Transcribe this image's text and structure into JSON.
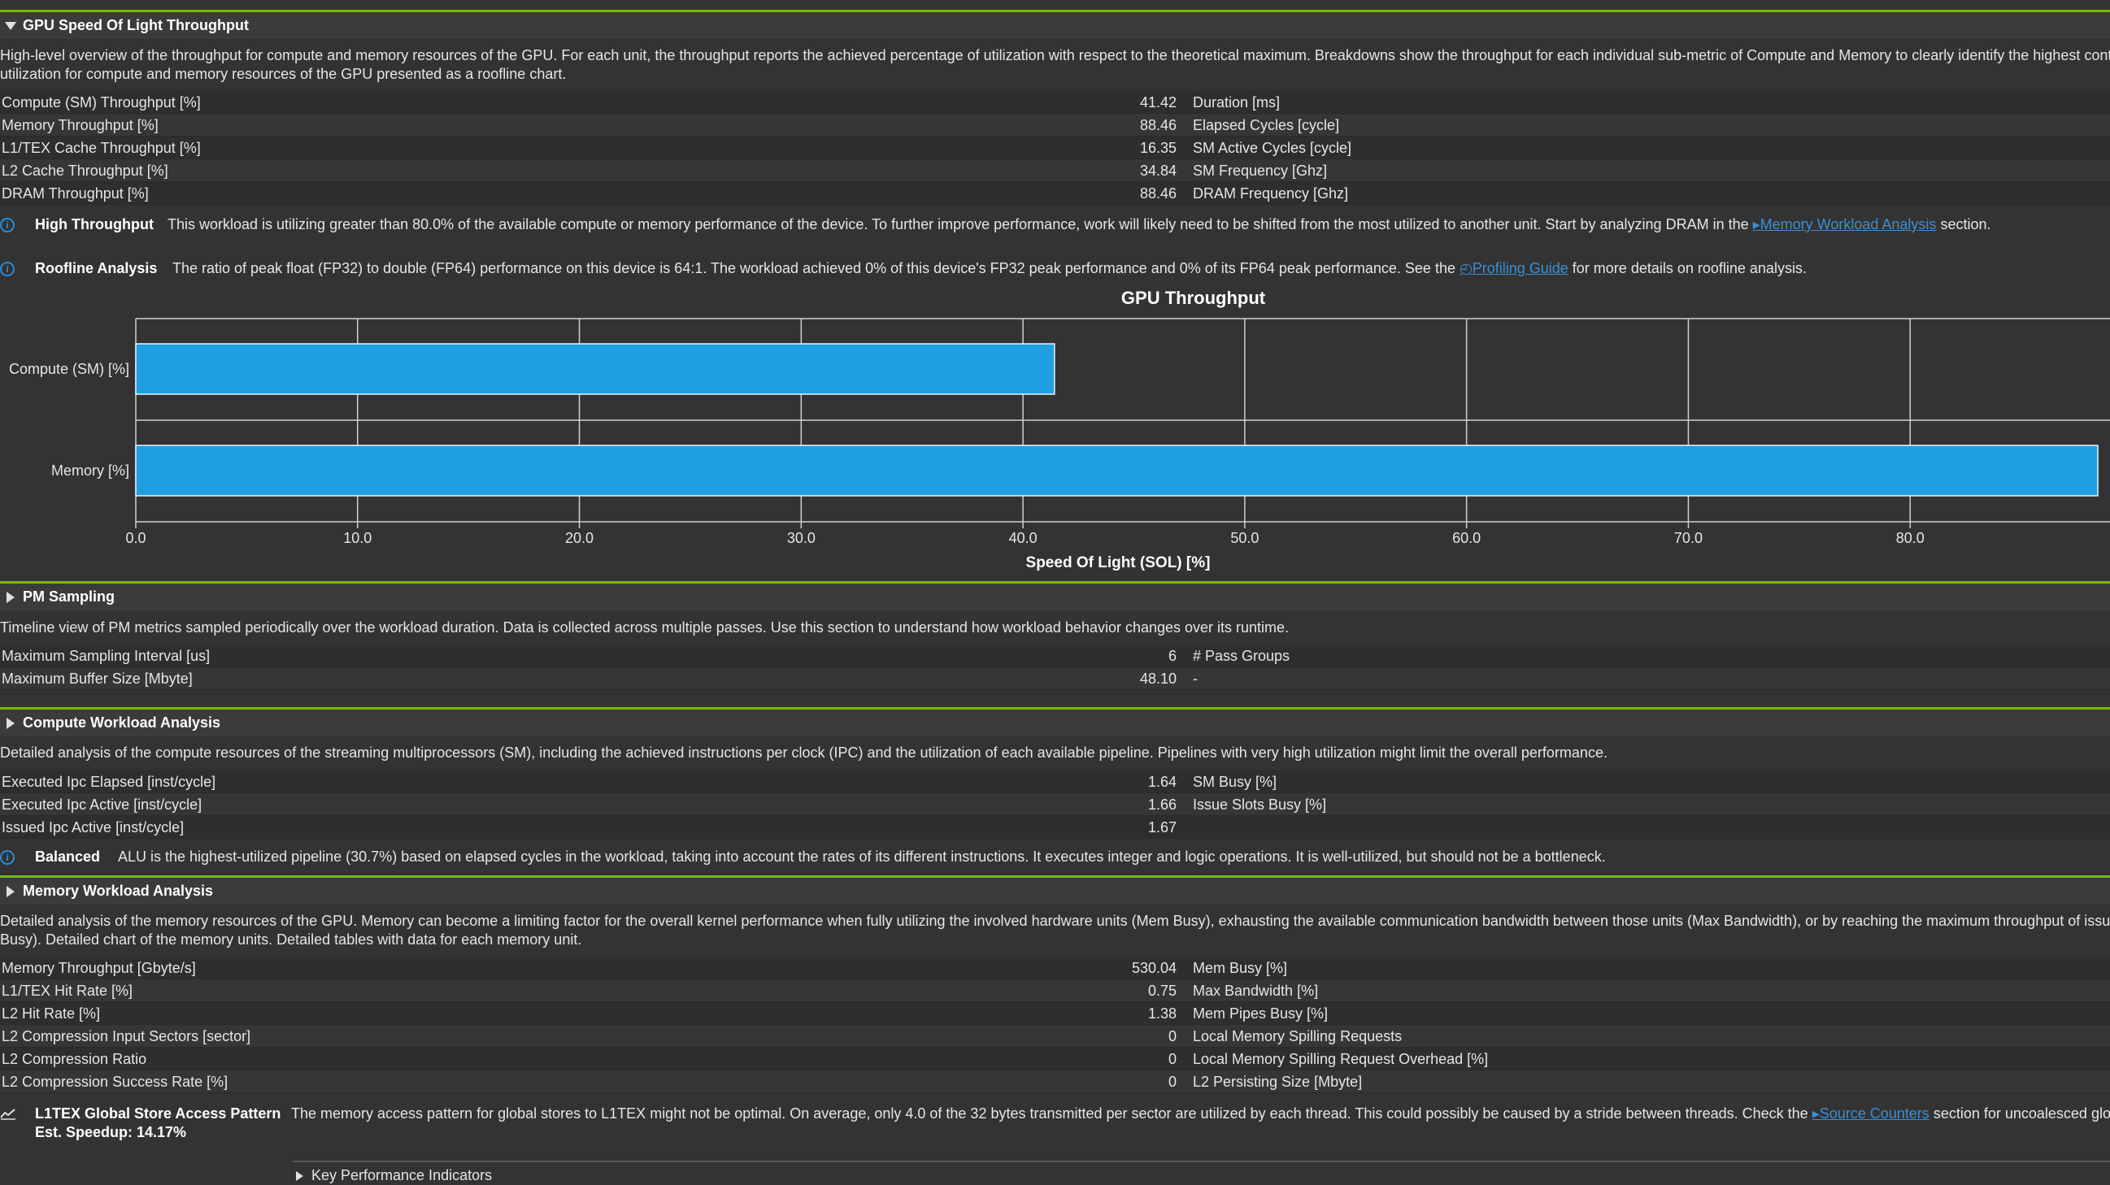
{
  "sections": {
    "sol": {
      "title": "GPU Speed Of Light Throughput",
      "desc1": "High-level overview of the throughput for compute and memory resources of the GPU. For each unit, the throughput reports the achieved percentage of utilization with respect to the theoretical maximum. Breakdowns show the throughput for each individual sub-metric of Compute and Memory to clearly identify the highest cont",
      "desc2": "utilization for compute and memory resources of the GPU presented as a roofline chart.",
      "rows": [
        {
          "label": "Compute (SM) Throughput [%]",
          "value": "41.42",
          "label2": "Duration [ms]"
        },
        {
          "label": "Memory Throughput [%]",
          "value": "88.46",
          "label2": "Elapsed Cycles [cycle]"
        },
        {
          "label": "L1/TEX Cache Throughput [%]",
          "value": "16.35",
          "label2": "SM Active Cycles [cycle]"
        },
        {
          "label": "L2 Cache Throughput [%]",
          "value": "34.84",
          "label2": "SM Frequency [Ghz]"
        },
        {
          "label": "DRAM Throughput [%]",
          "value": "88.46",
          "label2": "DRAM Frequency [Ghz]"
        }
      ],
      "rule1": {
        "title": "High Throughput",
        "text": "This workload is utilizing greater than 80.0% of the available compute or memory performance of the device. To further improve performance, work will likely need to be shifted from the most utilized to another unit. Start by analyzing DRAM in the",
        "link": "Memory Workload Analysis",
        "after": "section."
      },
      "rule2": {
        "title": "Roofline Analysis",
        "text": "The ratio of peak float (FP32) to double (FP64) performance on this device is 64:1. The workload achieved 0% of this device's FP32 peak performance and 0% of its FP64 peak performance. See the",
        "link": "Profiling Guide",
        "after": "for more details on roofline analysis."
      }
    },
    "pm": {
      "title": "PM Sampling",
      "desc": "Timeline view of PM metrics sampled periodically over the workload duration. Data is collected across multiple passes. Use this section to understand how workload behavior changes over its runtime.",
      "rows": [
        {
          "label": "Maximum Sampling Interval [us]",
          "value": "6",
          "label2": "# Pass Groups"
        },
        {
          "label": "Maximum Buffer Size [Mbyte]",
          "value": "48.10",
          "label2": "-"
        }
      ]
    },
    "cwa": {
      "title": "Compute Workload Analysis",
      "desc": "Detailed analysis of the compute resources of the streaming multiprocessors (SM), including the achieved instructions per clock (IPC) and the utilization of each available pipeline. Pipelines with very high utilization might limit the overall performance.",
      "rows": [
        {
          "label": "Executed Ipc Elapsed [inst/cycle]",
          "value": "1.64",
          "label2": "SM Busy [%]"
        },
        {
          "label": "Executed Ipc Active [inst/cycle]",
          "value": "1.66",
          "label2": "Issue Slots Busy [%]"
        },
        {
          "label": "Issued Ipc Active [inst/cycle]",
          "value": "1.67",
          "label2": ""
        }
      ],
      "rule": {
        "title": "Balanced",
        "text": "ALU is the highest-utilized pipeline (30.7%) based on elapsed cycles in the workload, taking into account the rates of its different instructions. It executes integer and logic operations. It is well-utilized, but should not be a bottleneck."
      }
    },
    "mwa": {
      "title": "Memory Workload Analysis",
      "desc1": "Detailed analysis of the memory resources of the GPU. Memory can become a limiting factor for the overall kernel performance when fully utilizing the involved hardware units (Mem Busy), exhausting the available communication bandwidth between those units (Max Bandwidth), or by reaching the maximum throughput of issui",
      "desc2": "Busy). Detailed chart of the memory units. Detailed tables with data for each memory unit.",
      "rows": [
        {
          "label": "Memory Throughput [Gbyte/s]",
          "value": "530.04",
          "label2": "Mem Busy [%]"
        },
        {
          "label": "L1/TEX Hit Rate [%]",
          "value": "0.75",
          "label2": "Max Bandwidth [%]"
        },
        {
          "label": "L2 Hit Rate [%]",
          "value": "1.38",
          "label2": "Mem Pipes Busy [%]"
        },
        {
          "label": "L2 Compression Input Sectors [sector]",
          "value": "0",
          "label2": "Local Memory Spilling Requests"
        },
        {
          "label": "L2 Compression Ratio",
          "value": "0",
          "label2": "Local Memory Spilling Request Overhead [%]"
        },
        {
          "label": "L2 Compression Success Rate [%]",
          "value": "0",
          "label2": "L2 Persisting Size [Mbyte]"
        }
      ],
      "rule": {
        "title": "L1TEX Global Store Access Pattern",
        "speedup": "Est. Speedup: 14.17%",
        "text": "The memory access pattern for global stores to L1TEX might not be optimal. On average, only 4.0 of the 32 bytes transmitted per sector are utilized by each thread. This could possibly be caused by a stride between threads. Check the",
        "link": "Source Counters",
        "after": "section for uncoalesced glob"
      },
      "kpi": "Key Performance Indicators"
    }
  },
  "colors": {
    "accent": "#76b900",
    "bar": "#1e9fe0",
    "link": "#3a8fd8"
  },
  "chart_data": {
    "type": "bar",
    "orientation": "horizontal",
    "title": "GPU Throughput",
    "xlabel": "Speed Of Light (SOL) [%]",
    "categories": [
      "Compute (SM) [%]",
      "Memory [%]"
    ],
    "values": [
      41.42,
      88.46
    ],
    "xlim": [
      0,
      88.46
    ],
    "xticks": [
      "0.0",
      "10.0",
      "20.0",
      "30.0",
      "40.0",
      "50.0",
      "60.0",
      "70.0",
      "80.0"
    ],
    "grid": true
  }
}
